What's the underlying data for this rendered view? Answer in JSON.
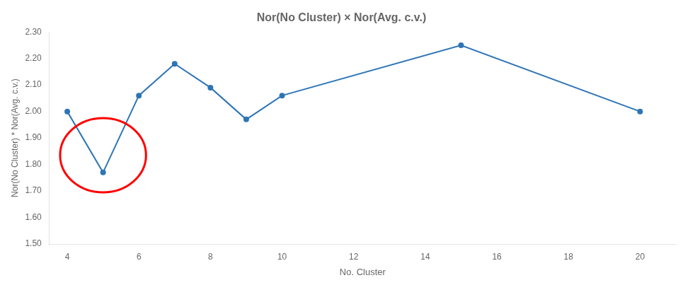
{
  "chart_data": {
    "type": "line",
    "title": "Nor(No Cluster) × Nor(Avg. c.v.)",
    "x_label": "No. Cluster",
    "y_label": "Nor(No Cluster) * Nor(Avg. c.v.)",
    "x": [
      4,
      5,
      6,
      7,
      8,
      9,
      10,
      15,
      20
    ],
    "values": [
      2.0,
      1.77,
      2.06,
      2.18,
      2.09,
      1.97,
      2.06,
      2.25,
      2.0
    ],
    "color": "#2e75b6",
    "marker": "circle",
    "xlim": [
      3.5,
      21
    ],
    "ylim": [
      1.5,
      2.3
    ],
    "xticks": [
      4,
      6,
      8,
      10,
      12,
      14,
      16,
      18,
      20
    ],
    "yticks": [
      {
        "value": 1.5,
        "label": "1.50"
      },
      {
        "value": 1.6,
        "label": "1.60"
      },
      {
        "value": 1.7,
        "label": "1.70"
      },
      {
        "value": 1.8,
        "label": "1.80"
      },
      {
        "value": 1.9,
        "label": "1.90"
      },
      {
        "value": 2.0,
        "label": "2.00"
      },
      {
        "value": 2.1,
        "label": "2.10"
      },
      {
        "value": 2.2,
        "label": "2.20"
      },
      {
        "value": 2.3,
        "label": "2.30"
      }
    ],
    "grid": false,
    "ellipse": {
      "x": 5.0,
      "y": 1.835,
      "width": 2.4,
      "height": 0.28,
      "color": "red"
    }
  }
}
